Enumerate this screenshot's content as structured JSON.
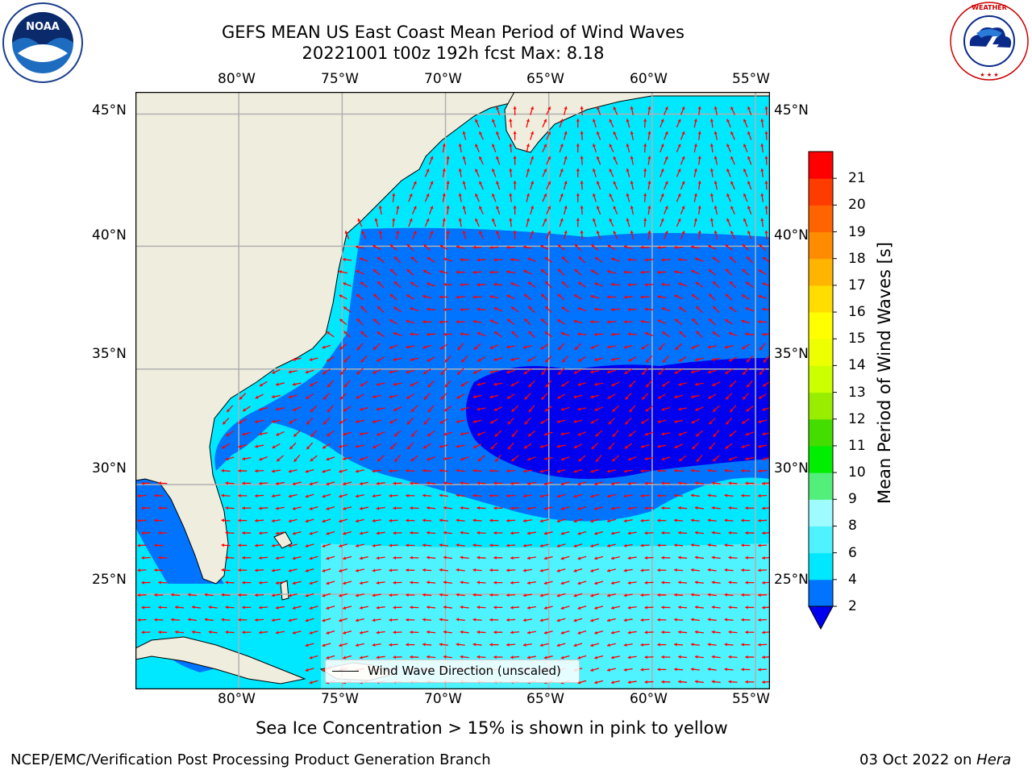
{
  "header": {
    "title_line1": "GEFS MEAN US East Coast Mean Period of Wind Waves",
    "title_line2": "20221001 t00z 192h fcst   Max: 8.18"
  },
  "logos": {
    "left": {
      "name": "noaa-logo",
      "text": "NOAA"
    },
    "right": {
      "name": "nws-logo",
      "text": "NATIONAL WEATHER SERVICE"
    }
  },
  "map": {
    "lon_labels": [
      "80°W",
      "75°W",
      "70°W",
      "65°W",
      "60°W",
      "55°W"
    ],
    "lat_labels": [
      "45°N",
      "40°N",
      "35°N",
      "30°N",
      "25°N"
    ],
    "extent": {
      "lon_min": -85,
      "lon_max": -54.3,
      "lat_min": 20.5,
      "lat_max": 45.8
    },
    "colors": {
      "land": "#efedde",
      "gridline": "#b0b0b0",
      "arrow": "#ff0000"
    }
  },
  "legend": {
    "label": "Wind Wave Direction (unscaled)"
  },
  "colorbar": {
    "title": "Mean Period of Wind Waves [s]",
    "tick_labels": [
      "2",
      "4",
      "6",
      "8",
      "9",
      "10",
      "11",
      "12",
      "13",
      "14",
      "15",
      "16",
      "17",
      "18",
      "19",
      "20",
      "21"
    ],
    "colors": [
      "#0073ff",
      "#00e8ff",
      "#4ff2ff",
      "#9efbff",
      "#52f07a",
      "#00ee00",
      "#44dd00",
      "#99ee00",
      "#ccff00",
      "#eeff00",
      "#ffff00",
      "#ffdd00",
      "#ffb400",
      "#ff8c00",
      "#ff6400",
      "#ff3c00",
      "#ff0000"
    ],
    "under_color": "#0000ee"
  },
  "note": "Sea Ice Concentration > 15% is shown in pink to yellow",
  "footer": {
    "left": "NCEP/EMC/Verification Post Processing Product Generation Branch",
    "right_date": "03 Oct 2022 on ",
    "right_host": "Hera"
  }
}
